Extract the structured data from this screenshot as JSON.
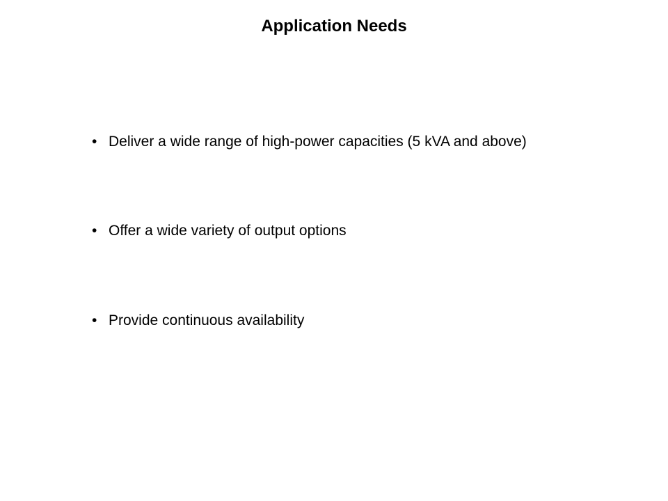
{
  "slide": {
    "title": "Application Needs",
    "title_fontsize": 24,
    "title_fontweight": "bold",
    "title_color": "#000000",
    "background_color": "#ffffff",
    "bullets": [
      "Deliver a wide range of high-power capacities (5 kVA and above)",
      "Offer a wide variety of output options",
      "Provide continuous availability"
    ],
    "bullet_fontsize": 21,
    "bullet_color": "#000000",
    "bullet_marker": "•",
    "font_family": "Verdana, Geneva, sans-serif"
  }
}
